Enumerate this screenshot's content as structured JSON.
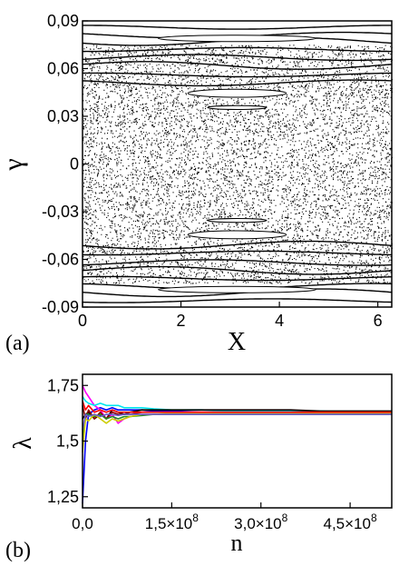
{
  "chart_data": [
    {
      "panel": "(a)",
      "type": "scatter",
      "xlabel": "X",
      "ylabel": "γ",
      "xlim": [
        0,
        6.283
      ],
      "ylim": [
        -0.09,
        0.09
      ],
      "xticks": [
        0,
        2,
        4,
        6
      ],
      "xtick_labels": [
        "0",
        "2",
        "4",
        "6"
      ],
      "yticks": [
        0.09,
        0.06,
        0.03,
        0,
        -0.03,
        -0.06,
        -0.09
      ],
      "ytick_labels": [
        "0,09",
        "0,06",
        "0,03",
        "0",
        "-0,03",
        "-0,06",
        "-0,09"
      ],
      "grid": false,
      "point_color": "#000000",
      "chaotic_sea_ylim": [
        -0.075,
        0.075
      ],
      "regular_bands_y": [
        0.086,
        0.081,
        0.077,
        0.072,
        0.067,
        0.062,
        0.056,
        0.051,
        -0.051,
        -0.056,
        -0.062,
        -0.067,
        -0.072,
        -0.077,
        -0.081,
        -0.086
      ],
      "island_chains": [
        {
          "x_center": 3.14,
          "y_center": 0.0445,
          "half_width_x": 1.0,
          "half_height_y": 0.0025
        },
        {
          "x_center": 3.14,
          "y_center": -0.0445,
          "half_width_x": 1.0,
          "half_height_y": 0.0025
        },
        {
          "x_center": 3.14,
          "y_center": 0.079,
          "half_width_x": 1.6,
          "half_height_y": 0.002
        },
        {
          "x_center": 3.14,
          "y_center": -0.079,
          "half_width_x": 1.6,
          "half_height_y": 0.002
        },
        {
          "x_center": 3.14,
          "y_center": 0.0355,
          "half_width_x": 0.6,
          "half_height_y": 0.0012
        },
        {
          "x_center": 3.14,
          "y_center": -0.0355,
          "half_width_x": 0.6,
          "half_height_y": 0.0012
        }
      ]
    },
    {
      "panel": "(b)",
      "type": "line",
      "xlabel": "n",
      "ylabel": "λ",
      "xlim": [
        0,
        520000000.0
      ],
      "ylim": [
        1.2,
        1.8
      ],
      "xticks": [
        0,
        150000000.0,
        300000000.0,
        450000000.0
      ],
      "xtick_labels": [
        {
          "base": "0,0",
          "exp": ""
        },
        {
          "base": "1,5×10",
          "exp": "8"
        },
        {
          "base": "3,0×10",
          "exp": "8"
        },
        {
          "base": "4,5×10",
          "exp": "8"
        }
      ],
      "yticks": [
        1.75,
        1.5,
        1.25
      ],
      "ytick_labels": [
        "1,75",
        "1,5",
        "1,25"
      ],
      "grid": false,
      "x": [
        0,
        5000000.0,
        10000000.0,
        20000000.0,
        30000000.0,
        40000000.0,
        50000000.0,
        60000000.0,
        70000000.0,
        80000000.0,
        100000000.0,
        120000000.0,
        150000000.0,
        200000000.0,
        250000000.0,
        300000000.0,
        350000000.0,
        400000000.0,
        450000000.0,
        520000000.0
      ],
      "series": [
        {
          "color": "#0000ff",
          "values": [
            1.22,
            1.5,
            1.62,
            1.64,
            1.65,
            1.64,
            1.65,
            1.64,
            1.64,
            1.64,
            1.64,
            1.635,
            1.635,
            1.63,
            1.63,
            1.63,
            1.63,
            1.63,
            1.625,
            1.625
          ]
        },
        {
          "color": "#ff00ff",
          "values": [
            1.75,
            1.72,
            1.7,
            1.66,
            1.64,
            1.6,
            1.62,
            1.58,
            1.6,
            1.61,
            1.62,
            1.62,
            1.62,
            1.62,
            1.62,
            1.62,
            1.62,
            1.62,
            1.62,
            1.62
          ]
        },
        {
          "color": "#00e5ee",
          "values": [
            1.7,
            1.68,
            1.67,
            1.66,
            1.67,
            1.66,
            1.66,
            1.66,
            1.65,
            1.65,
            1.65,
            1.645,
            1.64,
            1.64,
            1.635,
            1.635,
            1.635,
            1.635,
            1.63,
            1.63
          ]
        },
        {
          "color": "#000000",
          "values": [
            1.6,
            1.62,
            1.63,
            1.6,
            1.62,
            1.6,
            1.64,
            1.63,
            1.62,
            1.63,
            1.64,
            1.64,
            1.64,
            1.64,
            1.64,
            1.64,
            1.64,
            1.635,
            1.635,
            1.635
          ]
        },
        {
          "color": "#8b0000",
          "values": [
            1.66,
            1.6,
            1.64,
            1.6,
            1.63,
            1.6,
            1.63,
            1.62,
            1.62,
            1.62,
            1.63,
            1.63,
            1.63,
            1.63,
            1.63,
            1.63,
            1.63,
            1.63,
            1.63,
            1.63
          ]
        },
        {
          "color": "#228b22",
          "values": [
            1.5,
            1.62,
            1.62,
            1.61,
            1.62,
            1.6,
            1.61,
            1.6,
            1.61,
            1.61,
            1.615,
            1.62,
            1.62,
            1.62,
            1.62,
            1.62,
            1.62,
            1.62,
            1.62,
            1.62
          ]
        },
        {
          "color": "#cdcd00",
          "values": [
            1.45,
            1.6,
            1.59,
            1.62,
            1.6,
            1.58,
            1.6,
            1.59,
            1.6,
            1.61,
            1.62,
            1.62,
            1.625,
            1.625,
            1.625,
            1.625,
            1.625,
            1.625,
            1.625,
            1.625
          ]
        },
        {
          "color": "#ff0000",
          "values": [
            1.68,
            1.64,
            1.66,
            1.63,
            1.64,
            1.63,
            1.64,
            1.63,
            1.63,
            1.63,
            1.63,
            1.63,
            1.63,
            1.63,
            1.63,
            1.63,
            1.63,
            1.63,
            1.63,
            1.63
          ]
        },
        {
          "color": "#6a5acd",
          "values": [
            1.55,
            1.62,
            1.61,
            1.62,
            1.61,
            1.62,
            1.62,
            1.615,
            1.62,
            1.62,
            1.62,
            1.62,
            1.62,
            1.62,
            1.62,
            1.62,
            1.62,
            1.62,
            1.62,
            1.62
          ]
        }
      ]
    }
  ]
}
